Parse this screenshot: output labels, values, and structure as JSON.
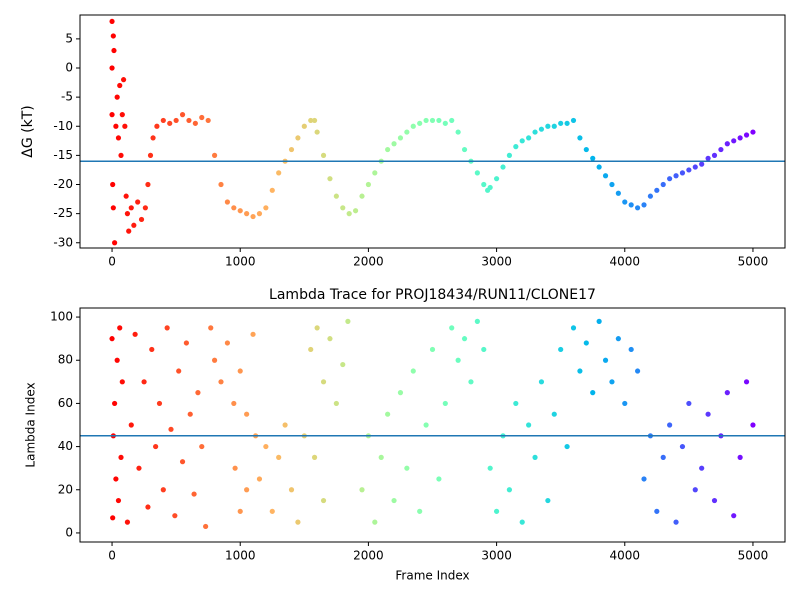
{
  "chart_data": [
    {
      "type": "scatter",
      "ylabel": "ΔG (kT)",
      "colormap": "rainbow_r",
      "hline": -16,
      "hline_color": "#1f77b4",
      "xlim": [
        -250,
        5250
      ],
      "xticks": [
        0,
        1000,
        2000,
        3000,
        4000,
        5000
      ],
      "ylim": [
        -30.9,
        9.1
      ],
      "yticks": [
        -30,
        -25,
        -20,
        -15,
        -10,
        -5,
        0,
        5
      ],
      "x": [
        0,
        0,
        10,
        15,
        0,
        5,
        10,
        20,
        30,
        40,
        50,
        60,
        70,
        80,
        90,
        100,
        110,
        120,
        130,
        150,
        170,
        200,
        230,
        260,
        280,
        300,
        320,
        350,
        400,
        450,
        500,
        550,
        600,
        650,
        700,
        750,
        800,
        850,
        900,
        950,
        1000,
        1050,
        1100,
        1150,
        1200,
        1250,
        1300,
        1350,
        1400,
        1450,
        1500,
        1550,
        1580,
        1600,
        1650,
        1700,
        1750,
        1800,
        1850,
        1900,
        1950,
        2000,
        2050,
        2100,
        2150,
        2200,
        2250,
        2300,
        2350,
        2400,
        2450,
        2500,
        2550,
        2600,
        2650,
        2700,
        2750,
        2800,
        2850,
        2900,
        2930,
        2950,
        3000,
        3050,
        3100,
        3150,
        3200,
        3250,
        3300,
        3350,
        3400,
        3450,
        3500,
        3550,
        3600,
        3650,
        3700,
        3750,
        3800,
        3850,
        3900,
        3950,
        4000,
        4050,
        4100,
        4150,
        4200,
        4250,
        4300,
        4350,
        4400,
        4450,
        4500,
        4550,
        4600,
        4650,
        4700,
        4750,
        4800,
        4850,
        4900,
        4950,
        5000
      ],
      "values": [
        0,
        8,
        5.5,
        3,
        -8,
        -20,
        -24,
        -30,
        -10,
        -5,
        -12,
        -3,
        -15,
        -8,
        -2,
        -10,
        -22,
        -25,
        -28,
        -24,
        -27,
        -23,
        -26,
        -24,
        -20,
        -15,
        -12,
        -10,
        -9,
        -9.5,
        -9,
        -8,
        -9,
        -9.5,
        -8.5,
        -9,
        -15,
        -20,
        -23,
        -24,
        -24.5,
        -25,
        -25.5,
        -25,
        -24,
        -21,
        -18,
        -16,
        -14,
        -12,
        -10,
        -9,
        -9,
        -11,
        -15,
        -19,
        -22,
        -24,
        -25,
        -24.5,
        -22,
        -20,
        -18,
        -16,
        -14,
        -13,
        -12,
        -11,
        -10,
        -9.5,
        -9,
        -9,
        -9,
        -9.5,
        -9,
        -11,
        -14,
        -16,
        -18,
        -20,
        -21,
        -20.5,
        -19,
        -17,
        -15,
        -13.5,
        -12.5,
        -12,
        -11,
        -10.5,
        -10,
        -10,
        -9.5,
        -9.5,
        -9,
        -12,
        -14,
        -15.5,
        -17,
        -18.5,
        -20,
        -21.5,
        -23,
        -23.5,
        -24,
        -23.5,
        -22,
        -21,
        -20,
        -19,
        -18.5,
        -18,
        -17.5,
        -17,
        -16.5,
        -15.5,
        -15,
        -14,
        -13,
        -12.5,
        -12,
        -11.5,
        -11
      ]
    },
    {
      "type": "scatter",
      "title": "Lambda Trace for PROJ18434/RUN11/CLONE17",
      "xlabel": "Frame Index",
      "ylabel": "Lambda Index",
      "colormap": "rainbow_r",
      "hline": 45,
      "hline_color": "#1f77b4",
      "xlim": [
        -250,
        5250
      ],
      "xticks": [
        0,
        1000,
        2000,
        3000,
        4000,
        5000
      ],
      "ylim": [
        -4.2,
        104.2
      ],
      "yticks": [
        0,
        20,
        40,
        60,
        80,
        100
      ],
      "x": [
        0,
        5,
        10,
        20,
        30,
        40,
        50,
        60,
        70,
        80,
        120,
        150,
        180,
        210,
        250,
        280,
        310,
        340,
        370,
        400,
        430,
        460,
        490,
        520,
        550,
        580,
        610,
        640,
        670,
        700,
        730,
        770,
        800,
        850,
        900,
        950,
        1000,
        1050,
        1100,
        960,
        1000,
        1050,
        1120,
        1150,
        1200,
        1250,
        1300,
        1350,
        1400,
        1450,
        1500,
        1550,
        1600,
        1650,
        1700,
        1750,
        1800,
        1840,
        1580,
        1650,
        1950,
        2000,
        2050,
        2100,
        2150,
        2200,
        2250,
        2300,
        2350,
        2400,
        2450,
        2500,
        2550,
        2600,
        2650,
        2700,
        2750,
        2800,
        2850,
        2900,
        2950,
        3000,
        3050,
        3100,
        3150,
        3200,
        3250,
        3300,
        3350,
        3400,
        3450,
        3500,
        3550,
        3600,
        3650,
        3700,
        3750,
        3800,
        3850,
        3900,
        3950,
        4000,
        4050,
        4100,
        4150,
        4200,
        4250,
        4300,
        4350,
        4400,
        4450,
        4500,
        4550,
        4600,
        4650,
        4700,
        4750,
        4800,
        4850,
        4900,
        4950,
        5000
      ],
      "values": [
        90,
        7,
        45,
        60,
        25,
        80,
        15,
        95,
        35,
        70,
        5,
        50,
        92,
        30,
        70,
        12,
        85,
        40,
        60,
        20,
        95,
        48,
        8,
        75,
        33,
        88,
        55,
        18,
        65,
        40,
        3,
        95,
        80,
        70,
        88,
        60,
        75,
        55,
        92,
        30,
        10,
        20,
        45,
        25,
        40,
        10,
        35,
        50,
        20,
        5,
        45,
        85,
        95,
        70,
        90,
        60,
        78,
        98,
        35,
        15,
        20,
        45,
        5,
        35,
        55,
        15,
        65,
        30,
        75,
        10,
        50,
        85,
        25,
        60,
        95,
        80,
        90,
        70,
        98,
        85,
        30,
        10,
        45,
        20,
        60,
        5,
        50,
        35,
        70,
        15,
        55,
        85,
        40,
        95,
        75,
        88,
        65,
        98,
        80,
        70,
        90,
        60,
        85,
        75,
        25,
        45,
        10,
        35,
        50,
        5,
        40,
        60,
        20,
        30,
        55,
        15,
        45,
        65,
        8,
        35,
        70,
        50
      ]
    }
  ]
}
